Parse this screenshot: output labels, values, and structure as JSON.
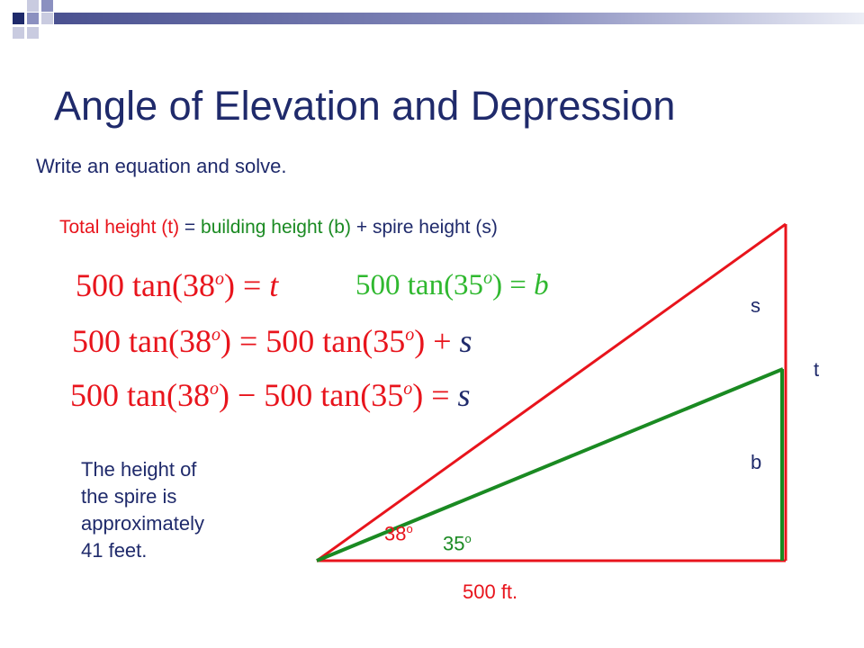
{
  "title": "Angle of Elevation and Depression",
  "subtitle": "Write an equation and solve.",
  "relation": {
    "total": "Total height (t)",
    "eq": "=",
    "building": "building height (b)",
    "plus": "+",
    "spire": "spire height (s)"
  },
  "equations": {
    "eq1": {
      "lhs": "500 tan(38",
      "deg": "o",
      "mid": ") = ",
      "var": "t"
    },
    "eq2": {
      "lhs": "500 tan(35",
      "deg": "o",
      "mid": ") = ",
      "var": "b"
    },
    "eq3": {
      "a": "500 tan(38",
      "deg1": "o",
      "b": ") = 500 tan(35",
      "deg2": "o",
      "c": ") + ",
      "var": "s"
    },
    "eq4": {
      "a": "500 tan(38",
      "deg1": "o",
      "b": ") − 500 tan(35",
      "deg2": "o",
      "c": ") = ",
      "var": "s"
    }
  },
  "conclusion": [
    "The height of",
    "the spire is",
    "approximately",
    "41 feet."
  ],
  "labels": {
    "s": "s",
    "t": "t",
    "b": "b",
    "angle_38": "38",
    "angle_35": "35",
    "deg": "o",
    "base": "500 ft."
  },
  "colors": {
    "title": "#1f2a6b",
    "red": "#e8141c",
    "green": "#1a8a22",
    "light_green": "#2fb82f"
  }
}
